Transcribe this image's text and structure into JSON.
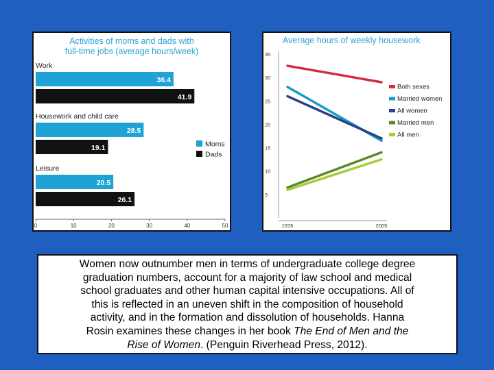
{
  "colors": {
    "background": "#1f5fbf",
    "title": "#2aa2d6",
    "moms": "#1fa3d6",
    "dads": "#111111",
    "both_sexes": "#d62b3c",
    "married_women": "#1a9cc8",
    "all_women": "#2b3f86",
    "married_men": "#5a8a24",
    "all_men": "#a6cc3a"
  },
  "chart_data": [
    {
      "type": "bar",
      "title": "Activities of moms and dads with full-time jobs (average hours/week)",
      "title_lines": [
        "Activities of moms and dads with",
        "full-time jobs (average hours/week)"
      ],
      "categories": [
        "Work",
        "Housework and child care",
        "Leisure"
      ],
      "series": [
        {
          "name": "Moms",
          "values": [
            36.4,
            28.5,
            20.5
          ],
          "labels": [
            "36.4",
            "28.5",
            "20.5"
          ]
        },
        {
          "name": "Dads",
          "values": [
            41.9,
            19.1,
            26.1
          ],
          "labels": [
            "41.9",
            "19.1",
            "26.1"
          ]
        }
      ],
      "xlim": [
        0,
        50
      ],
      "xticks": [
        0,
        10,
        20,
        30,
        40,
        50
      ],
      "orientation": "horizontal",
      "legend": "right"
    },
    {
      "type": "line",
      "title": "Average hours of weekly housework",
      "x": [
        1976,
        2005
      ],
      "xticks": [
        "1976",
        "2005"
      ],
      "ylim": [
        0,
        35
      ],
      "yticks": [
        5,
        10,
        15,
        20,
        25,
        30,
        35
      ],
      "series": [
        {
          "name": "Both sexes",
          "values": [
            32.5,
            29
          ]
        },
        {
          "name": "Married women",
          "values": [
            28,
            16.5
          ]
        },
        {
          "name": "All women",
          "values": [
            26,
            17
          ]
        },
        {
          "name": "Married men",
          "values": [
            6.5,
            14
          ]
        },
        {
          "name": "All men",
          "values": [
            6,
            12.5
          ]
        }
      ],
      "legend": "right"
    }
  ],
  "caption": {
    "line1": "Women now outnumber men in terms of undergraduate college degree",
    "line2": "graduation numbers, account for a majority of law school and medical",
    "line3": "school graduates and other human capital intensive occupations.  All of",
    "line4": "this is reflected in an uneven shift in the composition of household",
    "line5": "activity, and in the formation and dissolution of households.  Hanna",
    "line6_pre": "Rosin examines these changes in her book ",
    "line6_italic": "The End of Men and the",
    "line7_italic": "Rise of Women",
    "line7_post": ". (Penguin Riverhead Press, 2012)."
  }
}
